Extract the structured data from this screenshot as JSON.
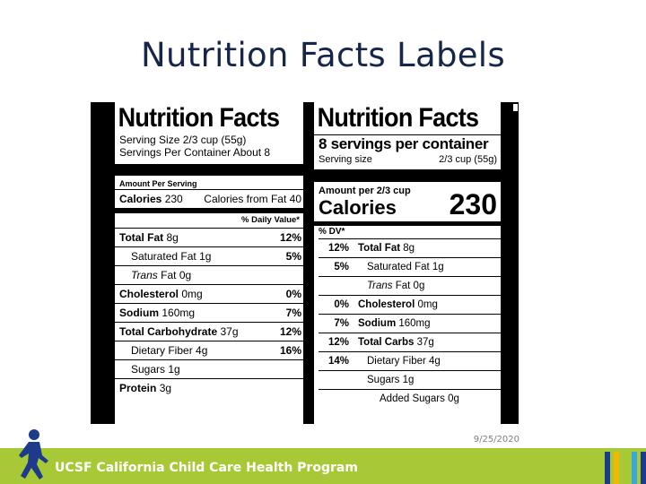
{
  "title": "Nutrition Facts Labels",
  "date": "9/25/2020",
  "footer": {
    "org": "UCSF California Child Care Health Program"
  },
  "colors": {
    "title": "#16264a",
    "footer_bar": "#a6c935",
    "stripes": [
      "#1e3a8a",
      "#f2b705",
      "#a6c935",
      "#3aa7d9",
      "#1e3a8a"
    ]
  },
  "old_label": {
    "heading": "Nutrition Facts",
    "serving_size": "Serving Size 2/3 cup (55g)",
    "servings_per_container": "Servings Per Container About 8",
    "amount_per_serving": "Amount Per Serving",
    "calories": {
      "label": "Calories",
      "value": "230",
      "from_fat": "Calories from Fat 40"
    },
    "daily_value_header": "% Daily Value*",
    "rows": [
      {
        "name": "Total Fat",
        "amount": "8g",
        "dv": "12%"
      },
      {
        "name": "Saturated Fat",
        "amount": "1g",
        "dv": "5%"
      },
      {
        "name": "Trans",
        "amount": "Fat 0g",
        "dv": ""
      },
      {
        "name": "Cholesterol",
        "amount": "0mg",
        "dv": "0%"
      },
      {
        "name": "Sodium",
        "amount": "160mg",
        "dv": "7%"
      },
      {
        "name": "Total Carbohydrate",
        "amount": "37g",
        "dv": "12%"
      },
      {
        "name": "Dietary Fiber",
        "amount": "4g",
        "dv": "16%"
      },
      {
        "name": "Sugars",
        "amount": "1g",
        "dv": ""
      },
      {
        "name": "Protein",
        "amount": "3g",
        "dv": ""
      }
    ]
  },
  "new_label": {
    "heading": "Nutrition Facts",
    "servings_per_container": "8 servings per container",
    "serving_size_label": "Serving size",
    "serving_size_value": "2/3 cup (55g)",
    "amount_per": "Amount per 2/3 cup",
    "calories_label": "Calories",
    "calories_value": "230",
    "dv_header": "% DV*",
    "rows": [
      {
        "dv": "12%",
        "name": "Total Fat",
        "amount": "8g"
      },
      {
        "dv": "5%",
        "name": "Saturated Fat",
        "amount": "1g"
      },
      {
        "dv": "",
        "name": "Trans",
        "amount": "Fat 0g"
      },
      {
        "dv": "0%",
        "name": "Cholesterol",
        "amount": "0mg"
      },
      {
        "dv": "7%",
        "name": "Sodium",
        "amount": "160mg"
      },
      {
        "dv": "12%",
        "name": "Total Carbs",
        "amount": "37g"
      },
      {
        "dv": "14%",
        "name": "Dietary Fiber",
        "amount": "4g"
      },
      {
        "dv": "",
        "name": "Sugars",
        "amount": "1g"
      },
      {
        "dv": "",
        "name": "Added Sugars",
        "amount": "0g"
      }
    ]
  }
}
